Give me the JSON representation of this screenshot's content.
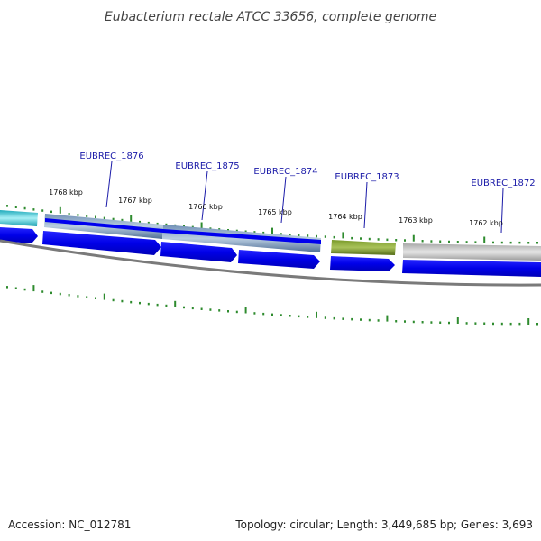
{
  "title": "Eubacterium rectale ATCC 33656, complete genome",
  "genes": [
    {
      "name": "EUBREC_1876"
    },
    {
      "name": "EUBREC_1875"
    },
    {
      "name": "EUBREC_1874"
    },
    {
      "name": "EUBREC_1873"
    },
    {
      "name": "EUBREC_1872"
    }
  ],
  "kbp_ticks": [
    {
      "label": "1768 kbp"
    },
    {
      "label": "1767 kbp"
    },
    {
      "label": "1766 kbp"
    },
    {
      "label": "1765 kbp"
    },
    {
      "label": "1764 kbp"
    },
    {
      "label": "1763 kbp"
    },
    {
      "label": "1762 kbp"
    }
  ],
  "footer": {
    "accession": "Accession: NC_012781",
    "summary": "Topology: circular; Length: 3,449,685 bp; Genes: 3,693"
  },
  "colors": {
    "cds": "#0000ee",
    "blast_blue": "#5a7fa8",
    "cyan": "#3ec8d8",
    "olive": "#6b8e23",
    "grey": "#bdbdbd",
    "backbone": "#777777",
    "tick": "#2e8b2e"
  }
}
